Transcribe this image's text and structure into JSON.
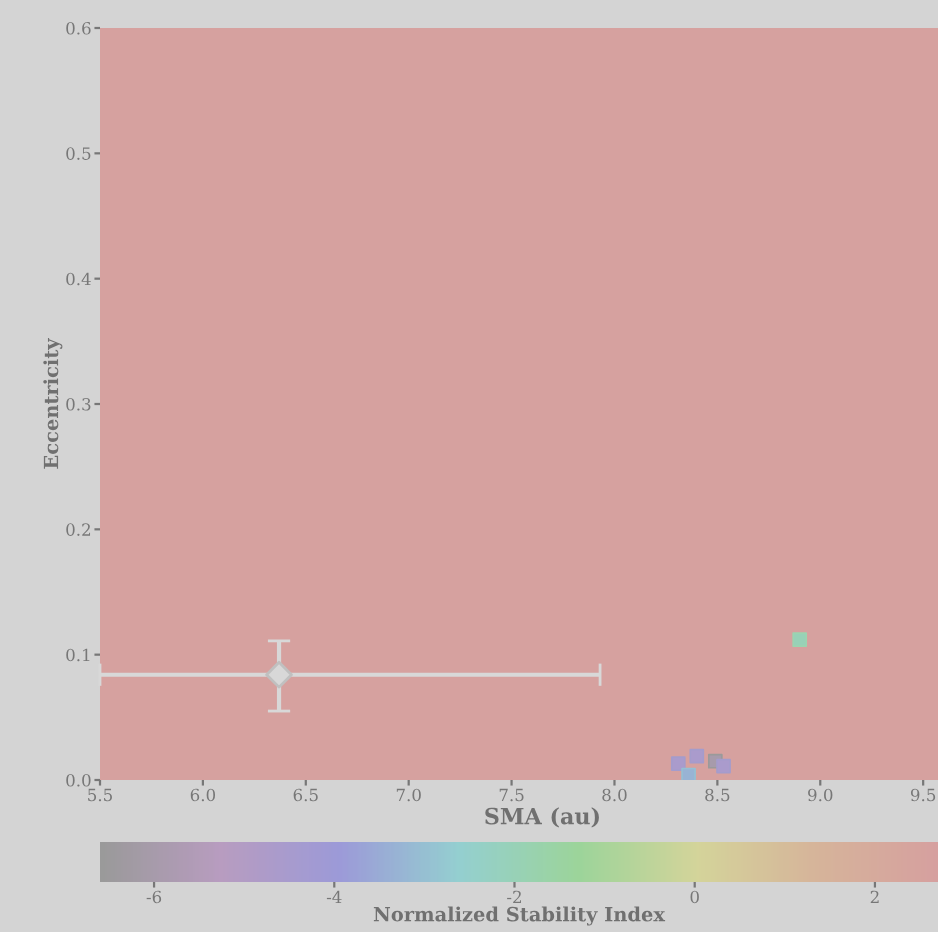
{
  "chart_data": {
    "type": "scatter",
    "xlabel": "SMA (au)",
    "ylabel": "Eccentricity",
    "clabel": "Normalized Stability Index",
    "xlim": [
      5.5,
      9.8
    ],
    "xticks": [
      5.5,
      {
        "value": 6,
        "label": "6.0"
      },
      6.5,
      {
        "value": 7,
        "label": "7.0"
      },
      7.5,
      {
        "value": 8,
        "label": "8.0"
      },
      8.5,
      {
        "value": 9,
        "label": "9.0"
      },
      9.5
    ],
    "ylim": [
      0,
      0.6
    ],
    "yticks": [
      {
        "value": 0,
        "label": "0.0"
      },
      0.1,
      0.2,
      0.3,
      0.4,
      0.5,
      0.6
    ],
    "clim": [
      -6.6,
      2.7
    ],
    "cticks": [
      -6,
      -4,
      -2,
      0,
      2
    ],
    "bands": [
      {
        "axis": "y",
        "from": 0,
        "to": 0.6,
        "color": "#d6a19f"
      }
    ],
    "series": [
      {
        "marker": "square",
        "x": [
          8.31,
          8.4,
          8.49,
          8.53,
          8.36,
          8.9
        ],
        "values": [
          0.013,
          0.019,
          0.015,
          0.011,
          0.004,
          0.112
        ],
        "cvalues": [
          -4.6,
          -4.6,
          -6,
          -4.6,
          -3.3,
          -2
        ],
        "colors": [
          "#a49ccc",
          "#a49ccc",
          "#9a9a9a",
          "#a49ccc",
          "#94c0d4",
          "#9cd4b0"
        ]
      },
      {
        "marker": "diamond",
        "color": "#d8d8d8",
        "x": [
          6.37
        ],
        "values": [
          0.084
        ],
        "errors": [
          [
            0.055,
            0.111
          ]
        ],
        "xerrors": [
          [
            5.5,
            7.93
          ]
        ]
      }
    ]
  }
}
